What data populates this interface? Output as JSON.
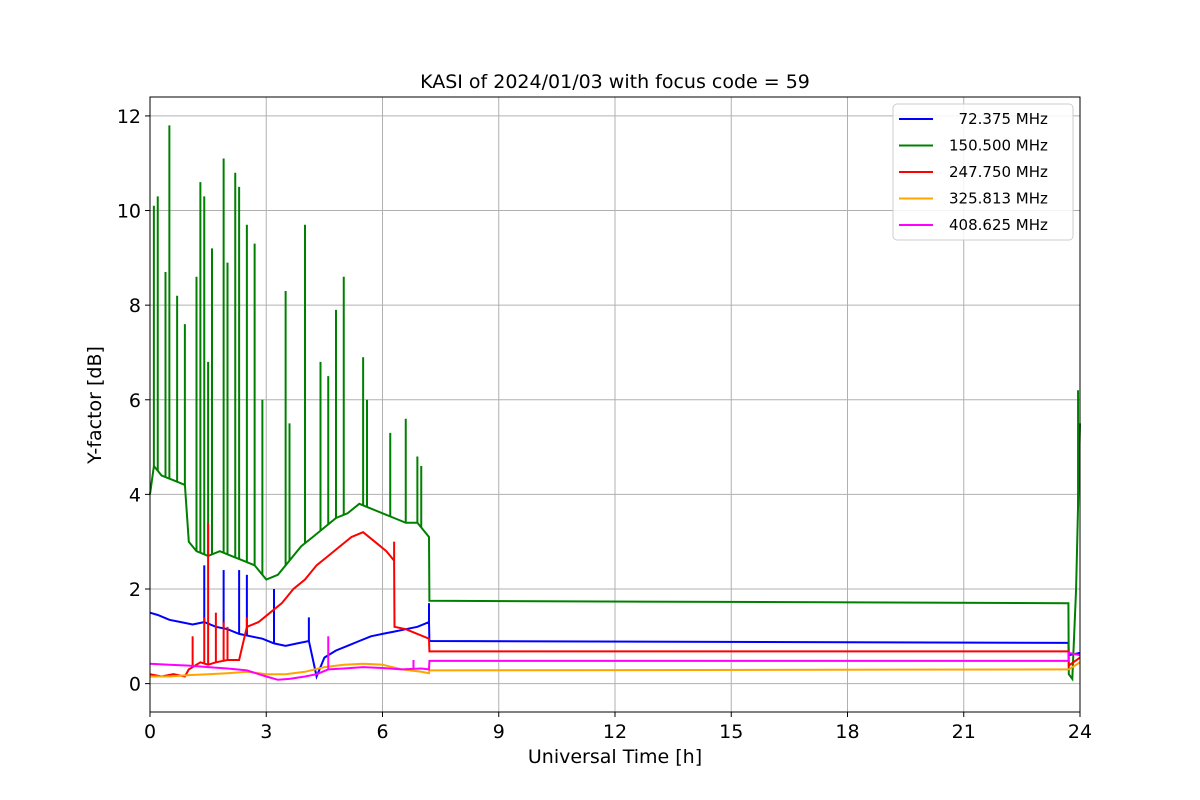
{
  "chart_data": {
    "type": "line",
    "title": "KASI of 2024/01/03 with focus code = 59",
    "xlabel": "Universal Time [h]",
    "ylabel": "Y-factor [dB]",
    "xlim": [
      0,
      24
    ],
    "ylim": [
      -0.6,
      12.4
    ],
    "xticks": [
      0,
      3,
      6,
      9,
      12,
      15,
      18,
      21,
      24
    ],
    "yticks": [
      0,
      2,
      4,
      6,
      8,
      10,
      12
    ],
    "grid": true,
    "legend_position": "top-right",
    "series": [
      {
        "name": "  72.375 MHz",
        "color": "#0000ff",
        "x": [
          0,
          0.2,
          0.5,
          0.8,
          1.1,
          1.4,
          1.7,
          2.0,
          2.3,
          2.6,
          2.9,
          3.2,
          3.5,
          3.8,
          4.1,
          4.3,
          4.5,
          4.8,
          5.1,
          5.4,
          5.7,
          6.0,
          6.3,
          6.6,
          6.9,
          7.2,
          7.21,
          23.7,
          23.71,
          24
        ],
        "y": [
          1.5,
          1.45,
          1.35,
          1.3,
          1.25,
          1.3,
          1.2,
          1.15,
          1.05,
          1.0,
          0.95,
          0.85,
          0.8,
          0.85,
          0.9,
          0.15,
          0.55,
          0.7,
          0.8,
          0.9,
          1.0,
          1.05,
          1.1,
          1.15,
          1.2,
          1.3,
          0.9,
          0.86,
          0.6,
          0.65
        ],
        "spikes": [
          [
            1.4,
            2.5
          ],
          [
            1.9,
            2.4
          ],
          [
            2.3,
            2.4
          ],
          [
            2.5,
            2.3
          ],
          [
            3.2,
            2.0
          ],
          [
            4.1,
            1.4
          ],
          [
            7.2,
            1.7
          ]
        ]
      },
      {
        "name": "150.500 MHz",
        "color": "#008000",
        "x": [
          0,
          0.1,
          0.3,
          0.6,
          0.9,
          1.0,
          1.2,
          1.5,
          1.8,
          2.1,
          2.4,
          2.7,
          3.0,
          3.3,
          3.6,
          3.9,
          4.2,
          4.5,
          4.8,
          5.1,
          5.4,
          5.7,
          6.0,
          6.3,
          6.6,
          6.9,
          7.2,
          7.21,
          23.7,
          23.71,
          23.8,
          23.9,
          24
        ],
        "y": [
          4.0,
          4.6,
          4.4,
          4.3,
          4.2,
          3.0,
          2.8,
          2.7,
          2.8,
          2.7,
          2.6,
          2.5,
          2.2,
          2.3,
          2.6,
          2.9,
          3.1,
          3.3,
          3.5,
          3.6,
          3.8,
          3.7,
          3.6,
          3.5,
          3.4,
          3.4,
          3.1,
          1.75,
          1.7,
          0.2,
          0.1,
          2.0,
          5.5
        ],
        "spikes": [
          [
            0.1,
            10.1
          ],
          [
            0.2,
            10.3
          ],
          [
            0.4,
            8.7
          ],
          [
            0.5,
            11.8
          ],
          [
            0.7,
            8.2
          ],
          [
            0.9,
            7.6
          ],
          [
            1.2,
            8.6
          ],
          [
            1.3,
            10.6
          ],
          [
            1.4,
            10.3
          ],
          [
            1.5,
            6.8
          ],
          [
            1.6,
            9.2
          ],
          [
            1.9,
            11.1
          ],
          [
            2.0,
            8.9
          ],
          [
            2.2,
            10.8
          ],
          [
            2.3,
            10.5
          ],
          [
            2.5,
            9.7
          ],
          [
            2.7,
            9.3
          ],
          [
            2.9,
            6.0
          ],
          [
            3.5,
            8.3
          ],
          [
            3.6,
            5.5
          ],
          [
            4.0,
            9.7
          ],
          [
            4.4,
            6.8
          ],
          [
            4.6,
            6.5
          ],
          [
            4.8,
            7.9
          ],
          [
            5.0,
            8.6
          ],
          [
            5.5,
            6.9
          ],
          [
            5.6,
            6.0
          ],
          [
            6.2,
            5.3
          ],
          [
            6.6,
            5.6
          ],
          [
            6.9,
            4.8
          ],
          [
            7.0,
            4.6
          ],
          [
            23.95,
            6.2
          ]
        ]
      },
      {
        "name": "247.750 MHz",
        "color": "#ff0000",
        "x": [
          0,
          0.3,
          0.6,
          0.9,
          1.0,
          1.1,
          1.3,
          1.5,
          1.7,
          2.0,
          2.3,
          2.5,
          2.8,
          3.1,
          3.4,
          3.7,
          4.0,
          4.3,
          4.6,
          4.9,
          5.2,
          5.5,
          5.8,
          6.1,
          6.3,
          6.31,
          6.6,
          6.9,
          7.2,
          7.21,
          23.7,
          23.71,
          24
        ],
        "y": [
          0.2,
          0.15,
          0.2,
          0.15,
          0.3,
          0.35,
          0.45,
          0.4,
          0.45,
          0.5,
          0.5,
          1.2,
          1.3,
          1.5,
          1.7,
          2.0,
          2.2,
          2.5,
          2.7,
          2.9,
          3.1,
          3.2,
          3.0,
          2.8,
          2.6,
          1.2,
          1.15,
          1.05,
          0.95,
          0.68,
          0.68,
          0.38,
          0.55
        ],
        "spikes": [
          [
            1.1,
            1.0
          ],
          [
            1.4,
            1.4
          ],
          [
            1.5,
            3.4
          ],
          [
            1.7,
            1.5
          ],
          [
            1.9,
            1.3
          ],
          [
            2.0,
            1.2
          ],
          [
            2.5,
            1.4
          ],
          [
            6.3,
            3.0
          ]
        ]
      },
      {
        "name": "325.813 MHz",
        "color": "#ffa500",
        "x": [
          0,
          0.5,
          1.0,
          1.5,
          2.0,
          2.5,
          3.0,
          3.5,
          4.0,
          4.5,
          5.0,
          5.5,
          6.0,
          6.5,
          7.0,
          7.2,
          7.21,
          23.7,
          23.71,
          24
        ],
        "y": [
          0.15,
          0.15,
          0.18,
          0.2,
          0.22,
          0.25,
          0.2,
          0.2,
          0.25,
          0.35,
          0.4,
          0.42,
          0.4,
          0.3,
          0.25,
          0.22,
          0.28,
          0.3,
          0.3,
          0.45
        ],
        "spikes": []
      },
      {
        "name": "408.625 MHz",
        "color": "#ff00ff",
        "x": [
          0,
          0.5,
          1.0,
          1.5,
          2.0,
          2.5,
          3.0,
          3.3,
          3.6,
          4.0,
          4.3,
          4.6,
          5.0,
          5.5,
          6.0,
          6.5,
          7.0,
          7.2,
          7.21,
          23.7,
          23.71,
          24
        ],
        "y": [
          0.42,
          0.4,
          0.38,
          0.35,
          0.32,
          0.28,
          0.15,
          0.08,
          0.1,
          0.15,
          0.2,
          0.3,
          0.32,
          0.35,
          0.33,
          0.3,
          0.32,
          0.3,
          0.48,
          0.48,
          0.65,
          0.6
        ],
        "spikes": [
          [
            4.6,
            1.0
          ],
          [
            6.8,
            0.5
          ]
        ]
      }
    ]
  }
}
